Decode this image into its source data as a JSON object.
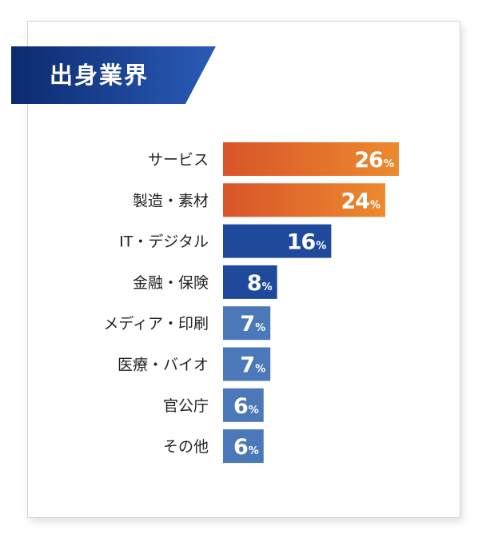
{
  "title": "出身業界",
  "chart_data": {
    "type": "bar",
    "orientation": "horizontal",
    "title": "出身業界",
    "categories": [
      "サービス",
      "製造・素材",
      "IT・デジタル",
      "金融・保険",
      "メディア・印刷",
      "医療・バイオ",
      "官公庁",
      "その他"
    ],
    "values": [
      26,
      24,
      16,
      8,
      7,
      7,
      6,
      6
    ],
    "unit": "%",
    "bar_colors": [
      "orange",
      "orange",
      "#1f4a9c",
      "#1f4a9c",
      "#4a78b8",
      "#4a78b8",
      "#4a78b8",
      "#4a78b8"
    ],
    "xlim": [
      0,
      26
    ],
    "grid": false,
    "legend": "none"
  },
  "colors": {
    "banner_dark": "#0c2a6e",
    "banner_light": "#2a5bb8",
    "orange_start": "#d9542a",
    "orange_end": "#ec8a2e",
    "navy": "#1f4a9c",
    "steel": "#4a78b8",
    "label": "#222222",
    "value": "#ffffff"
  }
}
